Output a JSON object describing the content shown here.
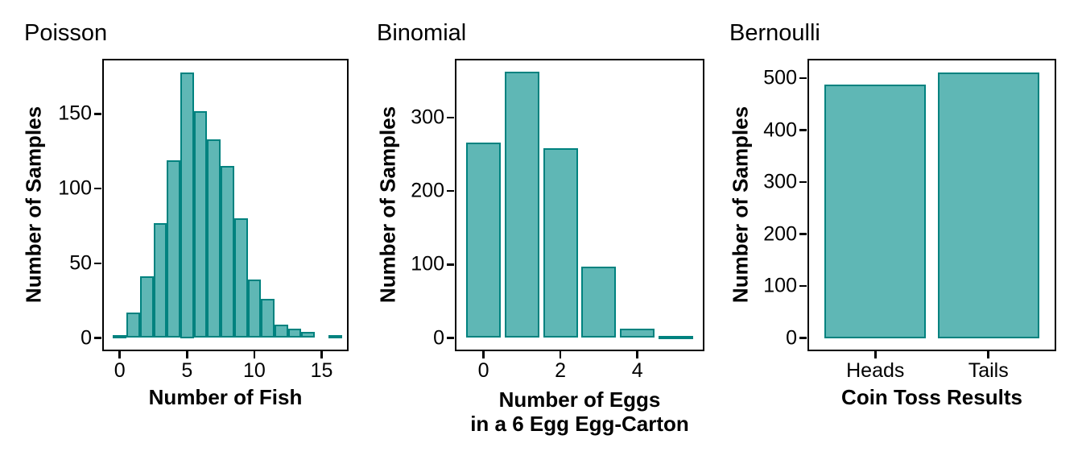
{
  "colors": {
    "bar_fill": "#5fb7b5",
    "bar_stroke": "#00827f",
    "panel_border": "#000000",
    "text": "#000000",
    "background": "#ffffff"
  },
  "chart_data": [
    {
      "id": "poisson",
      "type": "bar",
      "title": "Poisson",
      "xlabel": "Number of Fish",
      "ylabel": "Number of Samples",
      "x": [
        0,
        1,
        2,
        3,
        4,
        5,
        6,
        7,
        8,
        9,
        10,
        11,
        12,
        13,
        14,
        15,
        16
      ],
      "values": [
        2,
        17,
        41,
        77,
        119,
        178,
        152,
        133,
        115,
        80,
        39,
        26,
        9,
        6,
        4,
        0,
        2
      ],
      "bar_width": 1.0,
      "xticks": [
        0,
        5,
        10,
        15
      ],
      "yticks": [
        0,
        50,
        100,
        150
      ],
      "xlim": [
        -1.3,
        17.0
      ],
      "ylim": [
        -8.9,
        186.9
      ],
      "grid": false,
      "legend": false
    },
    {
      "id": "binomial",
      "type": "bar",
      "title": "Binomial",
      "xlabel": "Number of Eggs in a 6 Egg Egg-Carton",
      "xlabel_lines": [
        "Number of Eggs",
        "in a 6 Egg Egg-Carton"
      ],
      "ylabel": "Number of Samples",
      "x": [
        0,
        1,
        2,
        3,
        4,
        5
      ],
      "values": [
        266,
        363,
        258,
        97,
        13,
        3
      ],
      "bar_width": 0.9,
      "xticks": [
        0,
        2,
        4
      ],
      "yticks": [
        0,
        100,
        200,
        300
      ],
      "xlim": [
        -0.745,
        5.745
      ],
      "ylim": [
        -18.1,
        380.1
      ],
      "grid": false,
      "legend": false
    },
    {
      "id": "bernoulli",
      "type": "bar",
      "title": "Bernoulli",
      "xlabel": "Coin Toss Results",
      "ylabel": "Number of Samples",
      "categories": [
        "Heads",
        "Tails"
      ],
      "values": [
        488,
        512
      ],
      "bar_width": 0.9,
      "yticks": [
        0,
        100,
        200,
        300,
        400,
        500
      ],
      "xlim": [
        0.4,
        2.6
      ],
      "ylim": [
        -25.6,
        537.6
      ],
      "grid": false,
      "legend": false
    }
  ]
}
